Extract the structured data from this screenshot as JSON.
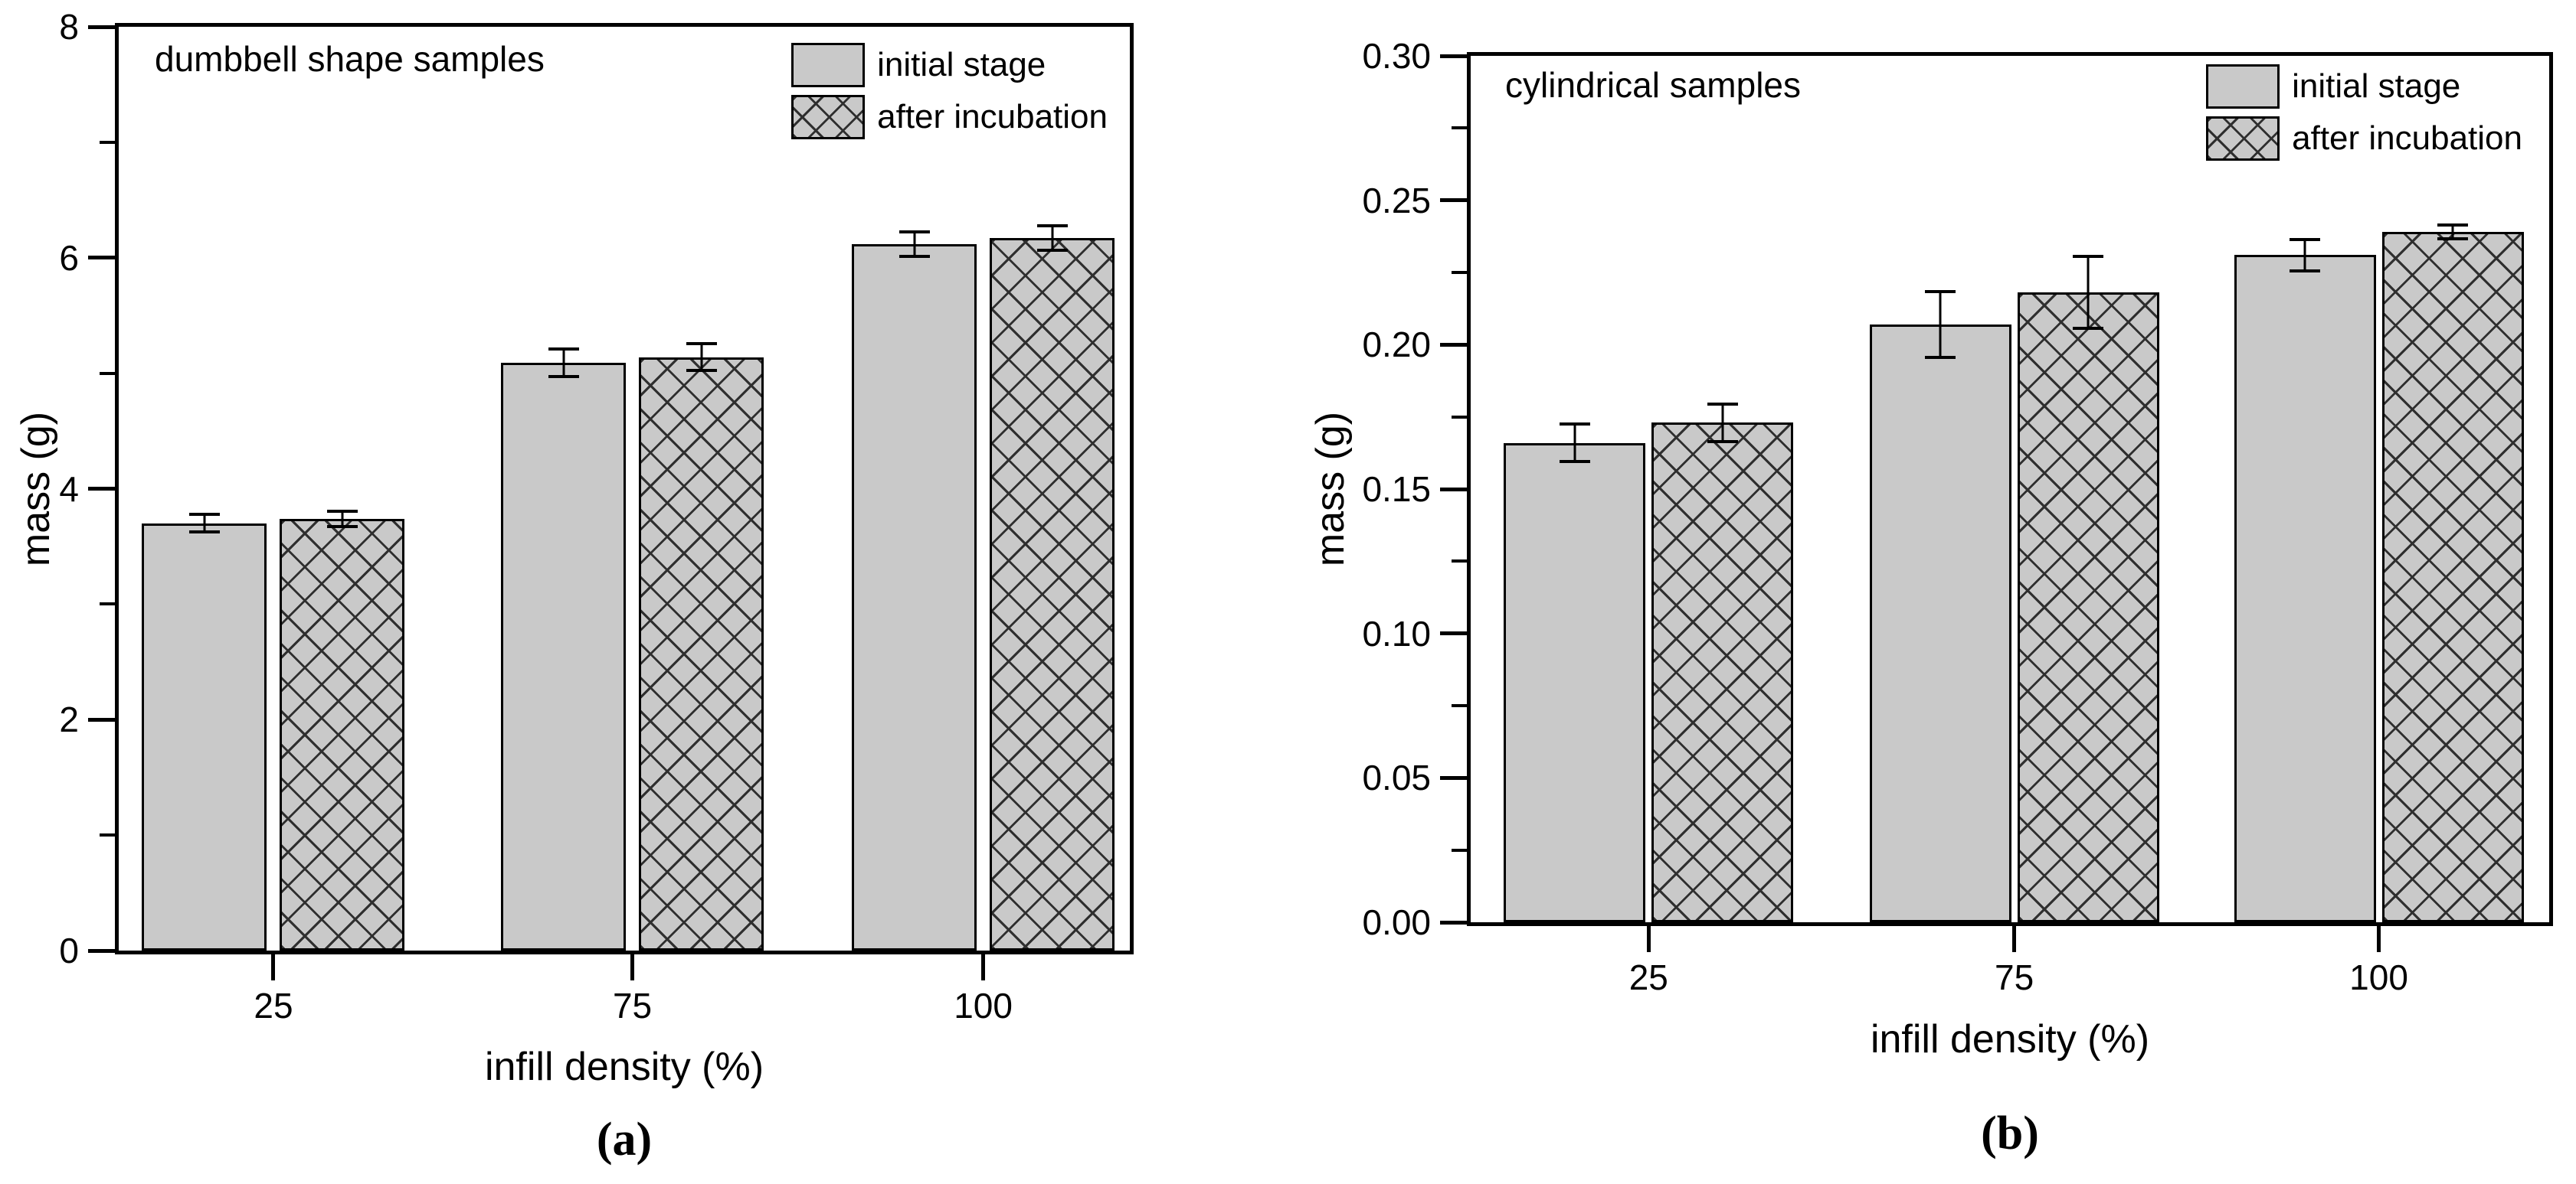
{
  "figure": {
    "background": "#ffffff",
    "description": "Two-panel grouped bar chart comparing sample mass before and after incubation at different infill densities"
  },
  "colors": {
    "bar_fill": "#c9c9c9",
    "bar_edge": "#000000",
    "hatch_line": "#2f2f2f",
    "axis": "#000000",
    "text": "#000000"
  },
  "chart_data": [
    {
      "type": "bar",
      "panel_letter": "(a)",
      "annotation": "dumbbell shape samples",
      "xlabel": "infill density (%)",
      "ylabel": "mass (g)",
      "categories": [
        "25",
        "75",
        "100"
      ],
      "series": [
        {
          "name": "initial stage",
          "pattern": "solid",
          "values": [
            3.7,
            5.09,
            6.12
          ],
          "errors": [
            0.09,
            0.13,
            0.12
          ]
        },
        {
          "name": "after incubation",
          "pattern": "crosshatch",
          "values": [
            3.74,
            5.14,
            6.17
          ],
          "errors": [
            0.08,
            0.13,
            0.12
          ]
        }
      ],
      "ylim": [
        0,
        8
      ],
      "ytick_values": [
        0,
        2,
        4,
        6,
        8
      ],
      "ytick_labels": [
        "0",
        "2",
        "4",
        "6",
        "8"
      ],
      "yminor_values": [
        1,
        3,
        5,
        7
      ],
      "legend_position": "top-right",
      "grid": false
    },
    {
      "type": "bar",
      "panel_letter": "(b)",
      "annotation": "cylindrical samples",
      "xlabel": "infill density (%)",
      "ylabel": "mass (g)",
      "categories": [
        "25",
        "75",
        "100"
      ],
      "series": [
        {
          "name": "initial stage",
          "pattern": "solid",
          "values": [
            0.166,
            0.207,
            0.231
          ],
          "errors": [
            0.007,
            0.012,
            0.006
          ]
        },
        {
          "name": "after incubation",
          "pattern": "crosshatch",
          "values": [
            0.173,
            0.218,
            0.239
          ],
          "errors": [
            0.007,
            0.013,
            0.003
          ]
        }
      ],
      "ylim": [
        0,
        0.3
      ],
      "ytick_values": [
        0,
        0.05,
        0.1,
        0.15,
        0.2,
        0.25,
        0.3
      ],
      "ytick_labels": [
        "0.00",
        "0.05",
        "0.10",
        "0.15",
        "0.20",
        "0.25",
        "0.30"
      ],
      "yminor_values": [
        0.025,
        0.075,
        0.125,
        0.175,
        0.225,
        0.275
      ],
      "legend_position": "top-right",
      "grid": false
    }
  ]
}
